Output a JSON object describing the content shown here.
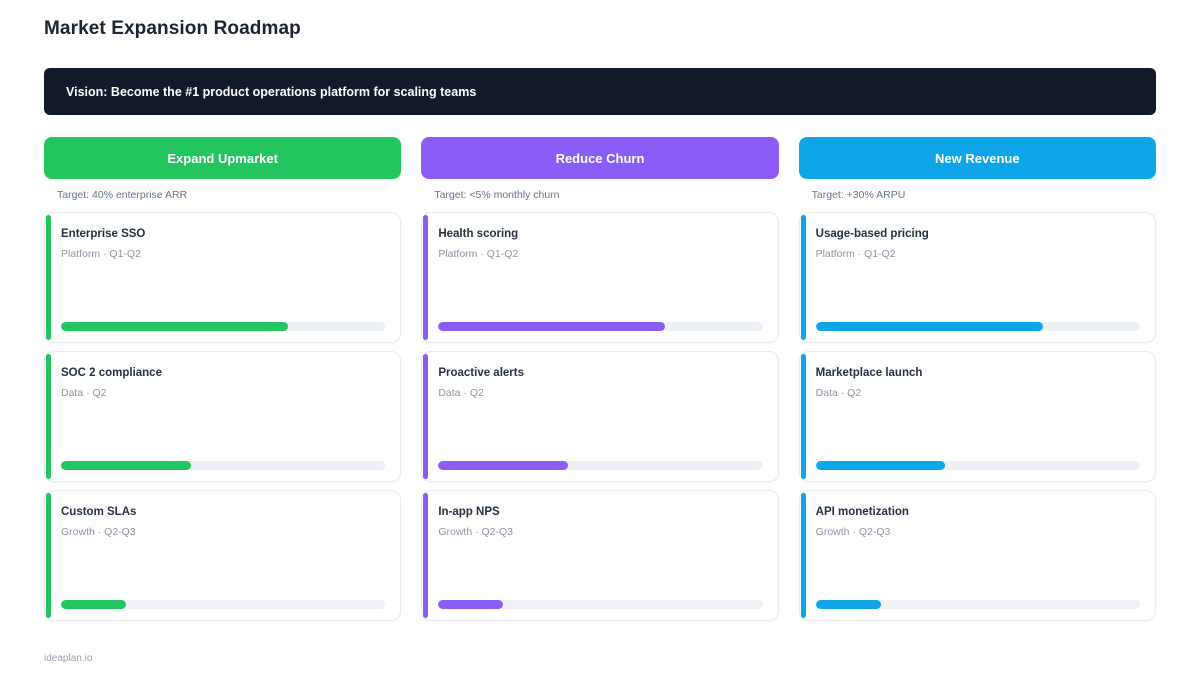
{
  "page": {
    "title": "Market Expansion Roadmap",
    "vision": "Vision: Become the #1 product operations platform for scaling teams",
    "footer": "ideaplan.io"
  },
  "colors": {
    "banner_bg": "#121a2b",
    "green": "#22c55e",
    "purple": "#8b5cf6",
    "blue": "#0ea5e9"
  },
  "columns": [
    {
      "header": "Expand Upmarket",
      "target": "Target: 40% enterprise ARR",
      "color": "#22c55e",
      "cards": [
        {
          "title": "Enterprise SSO",
          "meta": "Platform · Q1-Q2",
          "progress": 70
        },
        {
          "title": "SOC 2 compliance",
          "meta": "Data · Q2",
          "progress": 40
        },
        {
          "title": "Custom SLAs",
          "meta": "Growth · Q2-Q3",
          "progress": 20
        }
      ]
    },
    {
      "header": "Reduce Churn",
      "target": "Target: <5% monthly churn",
      "color": "#8b5cf6",
      "cards": [
        {
          "title": "Health scoring",
          "meta": "Platform · Q1-Q2",
          "progress": 70
        },
        {
          "title": "Proactive alerts",
          "meta": "Data · Q2",
          "progress": 40
        },
        {
          "title": "In-app NPS",
          "meta": "Growth · Q2-Q3",
          "progress": 20
        }
      ]
    },
    {
      "header": "New Revenue",
      "target": "Target: +30% ARPU",
      "color": "#0ea5e9",
      "cards": [
        {
          "title": "Usage-based pricing",
          "meta": "Platform · Q1-Q2",
          "progress": 70
        },
        {
          "title": "Marketplace launch",
          "meta": "Data · Q2",
          "progress": 40
        },
        {
          "title": "API monetization",
          "meta": "Growth · Q2-Q3",
          "progress": 20
        }
      ]
    }
  ]
}
